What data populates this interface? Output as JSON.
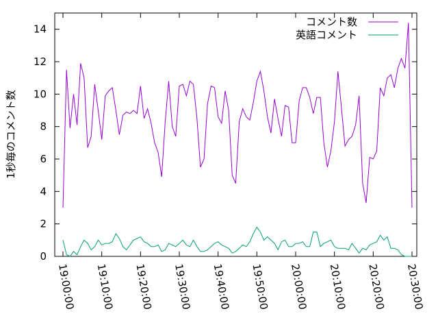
{
  "chart_data": {
    "type": "line",
    "title": "",
    "xlabel": "",
    "ylabel": "1秒毎のコメント数",
    "x_start": "19:00:00",
    "x_end": "20:30:00",
    "xticks": [
      "19:00:00",
      "19:10:00",
      "19:20:00",
      "19:30:00",
      "19:40:00",
      "19:50:00",
      "20:00:00",
      "20:10:00",
      "20:20:00",
      "20:30:00"
    ],
    "ylim": [
      0,
      15
    ],
    "yticks": [
      "0",
      "2",
      "4",
      "6",
      "8",
      "10",
      "12",
      "14"
    ],
    "legend_position": "top-right",
    "grid": false,
    "series": [
      {
        "name": "コメント数",
        "color": "#9400d3",
        "values": [
          3.0,
          11.5,
          7.9,
          10.0,
          8.1,
          11.9,
          11.0,
          6.7,
          7.4,
          10.6,
          9.0,
          7.2,
          9.9,
          10.2,
          10.4,
          9.0,
          7.5,
          8.7,
          8.9,
          8.8,
          9.0,
          8.8,
          10.5,
          8.5,
          9.1,
          8.2,
          7.0,
          6.4,
          4.9,
          8.3,
          10.8,
          8.0,
          7.4,
          10.5,
          10.6,
          9.9,
          10.8,
          10.6,
          8.5,
          5.5,
          6.0,
          9.4,
          10.5,
          10.4,
          8.6,
          8.2,
          10.2,
          9.0,
          5.0,
          4.5,
          8.3,
          9.1,
          8.6,
          8.4,
          9.5,
          10.8,
          11.4,
          10.2,
          8.6,
          7.6,
          9.7,
          8.5,
          7.4,
          9.3,
          9.2,
          7.0,
          7.0,
          9.6,
          10.4,
          10.4,
          9.8,
          8.8,
          9.8,
          9.8,
          7.0,
          5.5,
          6.5,
          8.3,
          11.4,
          9.1,
          6.8,
          7.2,
          7.4,
          8.1,
          9.9,
          4.5,
          3.3,
          6.1,
          6.0,
          6.5,
          10.4,
          9.9,
          11.0,
          11.2,
          10.4,
          11.6,
          12.2,
          11.6,
          14.4,
          3.0
        ]
      },
      {
        "name": "英語コメント",
        "color": "#009e73",
        "values": [
          1.0,
          0.1,
          0.0,
          0.3,
          0.1,
          0.6,
          1.0,
          0.8,
          0.4,
          0.6,
          1.0,
          0.7,
          0.8,
          0.8,
          0.9,
          1.4,
          1.1,
          0.6,
          0.4,
          0.7,
          1.0,
          1.1,
          1.2,
          0.9,
          0.8,
          0.6,
          0.6,
          0.7,
          0.3,
          0.4,
          0.8,
          0.7,
          0.6,
          0.8,
          1.0,
          0.7,
          0.6,
          1.0,
          0.6,
          0.3,
          0.3,
          0.4,
          0.6,
          0.8,
          0.9,
          0.7,
          0.6,
          0.5,
          0.2,
          0.3,
          0.5,
          0.7,
          0.6,
          0.9,
          1.4,
          1.8,
          1.5,
          1.0,
          1.2,
          1.0,
          0.8,
          0.4,
          0.9,
          1.0,
          0.6,
          0.6,
          0.8,
          0.8,
          0.9,
          0.6,
          0.6,
          1.5,
          1.5,
          0.6,
          0.8,
          0.9,
          1.0,
          0.6,
          0.5,
          0.5,
          0.5,
          0.4,
          0.8,
          0.5,
          0.2,
          0.5,
          0.4,
          0.7,
          0.8,
          0.9,
          1.3,
          1.0,
          1.2,
          0.5,
          0.5,
          0.4,
          0.1,
          0.0,
          0.0,
          0.0
        ]
      }
    ]
  }
}
